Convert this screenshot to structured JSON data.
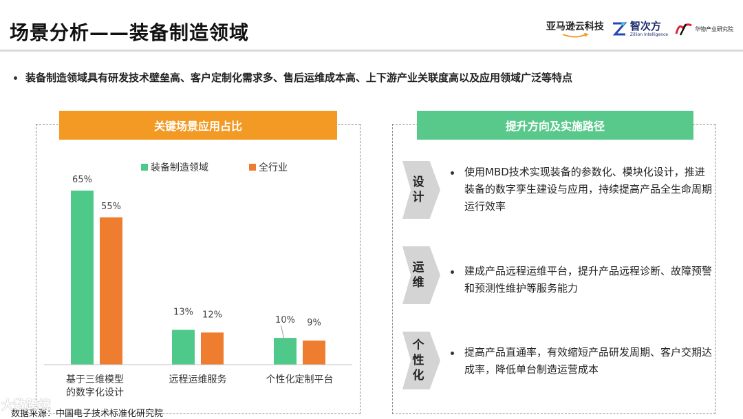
{
  "header": {
    "title": "场景分析——装备制造领域",
    "logos": {
      "aws": "亚马逊云科技",
      "zillion": "智次方",
      "zillion_sub": "Zillion Intelligence",
      "hw_mark": "华物",
      "hw_text": "华物产业研究院"
    }
  },
  "bullet": "装备制造领域具有研发技术壁垒高、客户定制化需求多、售后运维成本高、上下游产业关联度高以及应用领域广泛等特点",
  "left_banner": "关键场景应用占比",
  "right_banner": "提升方向及实施路径",
  "chart_data": {
    "type": "bar",
    "categories": [
      "基于三维模型\n的数字化设计",
      "远程运维服务",
      "个性化定制平台"
    ],
    "series": [
      {
        "name": "装备制造领域",
        "values": [
          65,
          13,
          10
        ],
        "color": "#4fc98a"
      },
      {
        "name": "全行业",
        "values": [
          55,
          12,
          9
        ],
        "color": "#ef7d30"
      }
    ],
    "data_labels": [
      [
        "65%",
        "13%",
        "10%"
      ],
      [
        "55%",
        "12%",
        "9%"
      ]
    ],
    "ylim": [
      0,
      70
    ],
    "legend_position": "top",
    "grid": false
  },
  "paths": [
    {
      "tag": [
        "设",
        "计"
      ],
      "text": "使用MBD技术实现装备的参数化、模块化设计，推进装备的数字孪生建设与应用，持续提高产品全生命周期运行效率"
    },
    {
      "tag": [
        "运",
        "维"
      ],
      "text": "建成产品远程运维平台，提升产品远程诊断、故障预警和预测性维护等服务能力"
    },
    {
      "tag": [
        "个",
        "性",
        "化"
      ],
      "text": "提高产品直通率，有效缩短产品研发周期、客户交期达成率，降低单台制造运营成本"
    }
  ],
  "source": "数据来源：中国电子技术标准化研究院",
  "watermark": "大数跨境"
}
